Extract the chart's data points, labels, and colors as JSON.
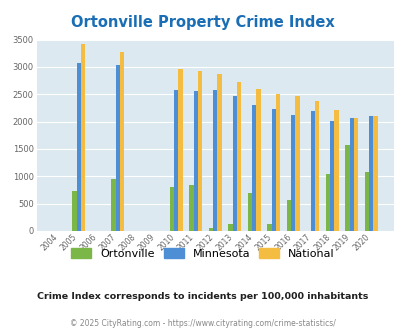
{
  "title": "Ortonville Property Crime Index",
  "years": [
    2004,
    2005,
    2006,
    2007,
    2008,
    2009,
    2010,
    2011,
    2012,
    2013,
    2014,
    2015,
    2016,
    2017,
    2018,
    2019,
    2020
  ],
  "ortonville": [
    0,
    740,
    0,
    960,
    0,
    0,
    800,
    850,
    50,
    120,
    690,
    120,
    570,
    0,
    1050,
    1570,
    1080
  ],
  "minnesota": [
    0,
    3080,
    0,
    3040,
    0,
    0,
    2580,
    2560,
    2580,
    2460,
    2310,
    2230,
    2130,
    2200,
    2010,
    2060,
    2100
  ],
  "national": [
    0,
    3420,
    0,
    3270,
    0,
    0,
    2970,
    2920,
    2870,
    2730,
    2600,
    2510,
    2470,
    2380,
    2210,
    2060,
    2100
  ],
  "ortonville_color": "#7ab648",
  "minnesota_color": "#4d8ed4",
  "national_color": "#f5bc42",
  "bg_color": "#dce9f0",
  "ylim": [
    0,
    3500
  ],
  "yticks": [
    0,
    500,
    1000,
    1500,
    2000,
    2500,
    3000,
    3500
  ],
  "subtitle": "Crime Index corresponds to incidents per 100,000 inhabitants",
  "footer": "© 2025 CityRating.com - https://www.cityrating.com/crime-statistics/",
  "title_color": "#1a6eb5",
  "subtitle_color": "#202020",
  "footer_color": "#888888",
  "legend_labels": [
    "Ortonville",
    "Minnesota",
    "National"
  ]
}
